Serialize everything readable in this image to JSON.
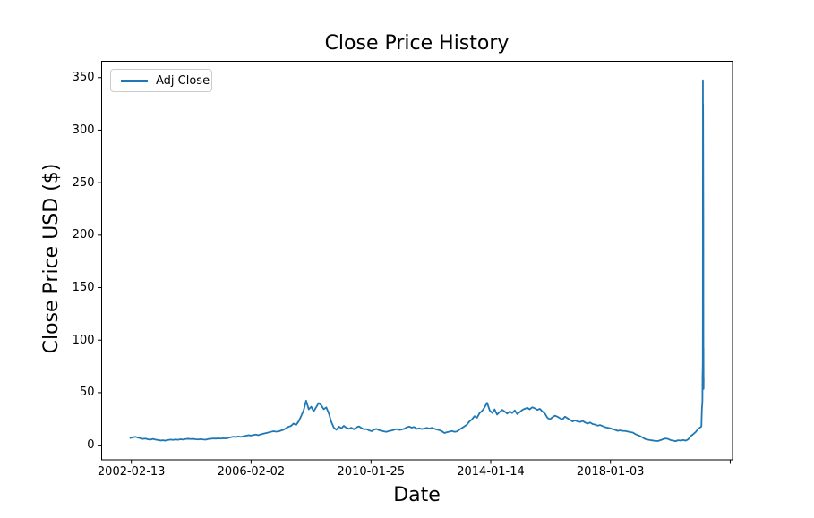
{
  "page": {
    "background": "#ffffff",
    "text_color": "#000000",
    "spine_color": "#000000"
  },
  "chart_data": {
    "type": "line",
    "title": "Close Price History",
    "xlabel": "Date",
    "ylabel": "Close Price USD ($)",
    "grid": false,
    "legend": {
      "position": "upper left",
      "entries": [
        {
          "label": "Adj Close",
          "color": "#1f77b4"
        }
      ]
    },
    "xticks": [
      "2002-02-13",
      "2006-02-02",
      "2010-01-25",
      "2014-01-14",
      "2018-01-03"
    ],
    "extra_unlabeled_xtick": true,
    "yticks": [
      0,
      50,
      100,
      150,
      200,
      250,
      300,
      350
    ],
    "ylim": [
      -14,
      365.5
    ],
    "series": [
      {
        "name": "Adj Close",
        "color": "#1f77b4",
        "points": [
          [
            "2002-02",
            6.8
          ],
          [
            "2002-03",
            7.4
          ],
          [
            "2002-04",
            8.0
          ],
          [
            "2002-05",
            7.2
          ],
          [
            "2002-06",
            6.6
          ],
          [
            "2002-07",
            5.9
          ],
          [
            "2002-08",
            6.3
          ],
          [
            "2002-09",
            5.6
          ],
          [
            "2002-10",
            5.2
          ],
          [
            "2002-11",
            5.9
          ],
          [
            "2002-12",
            5.3
          ],
          [
            "2003-01",
            4.9
          ],
          [
            "2003-02",
            4.4
          ],
          [
            "2003-03",
            4.7
          ],
          [
            "2003-04",
            4.3
          ],
          [
            "2003-05",
            4.9
          ],
          [
            "2003-06",
            5.3
          ],
          [
            "2003-07",
            5.0
          ],
          [
            "2003-08",
            5.4
          ],
          [
            "2003-09",
            5.1
          ],
          [
            "2003-10",
            5.6
          ],
          [
            "2003-11",
            5.3
          ],
          [
            "2003-12",
            5.8
          ],
          [
            "2004-01",
            6.1
          ],
          [
            "2004-02",
            5.8
          ],
          [
            "2004-03",
            6.0
          ],
          [
            "2004-04",
            5.6
          ],
          [
            "2004-05",
            5.4
          ],
          [
            "2004-06",
            5.7
          ],
          [
            "2004-07",
            5.4
          ],
          [
            "2004-08",
            5.2
          ],
          [
            "2004-09",
            5.8
          ],
          [
            "2004-10",
            6.1
          ],
          [
            "2004-11",
            6.4
          ],
          [
            "2004-12",
            6.2
          ],
          [
            "2005-01",
            6.5
          ],
          [
            "2005-02",
            6.3
          ],
          [
            "2005-03",
            6.6
          ],
          [
            "2005-04",
            6.4
          ],
          [
            "2005-05",
            6.9
          ],
          [
            "2005-06",
            7.5
          ],
          [
            "2005-07",
            8.1
          ],
          [
            "2005-08",
            7.7
          ],
          [
            "2005-09",
            8.3
          ],
          [
            "2005-10",
            7.9
          ],
          [
            "2005-11",
            8.5
          ],
          [
            "2005-12",
            8.9
          ],
          [
            "2006-01",
            9.5
          ],
          [
            "2006-02",
            9.1
          ],
          [
            "2006-03",
            9.7
          ],
          [
            "2006-04",
            10.1
          ],
          [
            "2006-05",
            9.5
          ],
          [
            "2006-06",
            10.3
          ],
          [
            "2006-07",
            10.9
          ],
          [
            "2006-08",
            11.5
          ],
          [
            "2006-09",
            12.1
          ],
          [
            "2006-10",
            12.7
          ],
          [
            "2006-11",
            13.3
          ],
          [
            "2006-12",
            12.9
          ],
          [
            "2007-01",
            13.1
          ],
          [
            "2007-02",
            13.9
          ],
          [
            "2007-03",
            14.7
          ],
          [
            "2007-04",
            16.1
          ],
          [
            "2007-05",
            17.5
          ],
          [
            "2007-06",
            18.3
          ],
          [
            "2007-07",
            20.6
          ],
          [
            "2007-08",
            19.2
          ],
          [
            "2007-09",
            22.6
          ],
          [
            "2007-10",
            27.6
          ],
          [
            "2007-11",
            33.2
          ],
          [
            "2007-12",
            42.4
          ],
          [
            "2008-01",
            34.2
          ],
          [
            "2008-02",
            36.6
          ],
          [
            "2008-03",
            32.2
          ],
          [
            "2008-04",
            36.2
          ],
          [
            "2008-05",
            40.2
          ],
          [
            "2008-06",
            38.0
          ],
          [
            "2008-07",
            34.2
          ],
          [
            "2008-08",
            36.0
          ],
          [
            "2008-09",
            30.2
          ],
          [
            "2008-10",
            22.0
          ],
          [
            "2008-11",
            16.6
          ],
          [
            "2008-12",
            14.6
          ],
          [
            "2009-01",
            17.6
          ],
          [
            "2009-02",
            16.1
          ],
          [
            "2009-03",
            18.4
          ],
          [
            "2009-04",
            16.6
          ],
          [
            "2009-05",
            15.6
          ],
          [
            "2009-06",
            16.6
          ],
          [
            "2009-07",
            15.1
          ],
          [
            "2009-08",
            16.9
          ],
          [
            "2009-09",
            17.9
          ],
          [
            "2009-10",
            16.3
          ],
          [
            "2009-11",
            15.1
          ],
          [
            "2009-12",
            15.3
          ],
          [
            "2010-01",
            14.1
          ],
          [
            "2010-02",
            13.3
          ],
          [
            "2010-03",
            14.7
          ],
          [
            "2010-04",
            15.5
          ],
          [
            "2010-05",
            14.3
          ],
          [
            "2010-06",
            13.7
          ],
          [
            "2010-07",
            13.1
          ],
          [
            "2010-08",
            12.7
          ],
          [
            "2010-09",
            13.5
          ],
          [
            "2010-10",
            13.9
          ],
          [
            "2010-11",
            14.7
          ],
          [
            "2010-12",
            15.3
          ],
          [
            "2011-01",
            14.5
          ],
          [
            "2011-02",
            14.9
          ],
          [
            "2011-03",
            15.5
          ],
          [
            "2011-04",
            16.9
          ],
          [
            "2011-05",
            17.7
          ],
          [
            "2011-06",
            16.7
          ],
          [
            "2011-07",
            17.3
          ],
          [
            "2011-08",
            15.5
          ],
          [
            "2011-09",
            16.1
          ],
          [
            "2011-10",
            15.3
          ],
          [
            "2011-11",
            15.9
          ],
          [
            "2011-12",
            16.5
          ],
          [
            "2012-01",
            15.9
          ],
          [
            "2012-02",
            16.5
          ],
          [
            "2012-03",
            15.7
          ],
          [
            "2012-04",
            14.9
          ],
          [
            "2012-05",
            14.3
          ],
          [
            "2012-06",
            13.3
          ],
          [
            "2012-07",
            11.6
          ],
          [
            "2012-08",
            12.3
          ],
          [
            "2012-09",
            12.9
          ],
          [
            "2012-10",
            13.5
          ],
          [
            "2012-11",
            12.7
          ],
          [
            "2012-12",
            13.1
          ],
          [
            "2013-01",
            14.9
          ],
          [
            "2013-02",
            16.5
          ],
          [
            "2013-03",
            17.9
          ],
          [
            "2013-04",
            19.6
          ],
          [
            "2013-05",
            22.6
          ],
          [
            "2013-06",
            24.6
          ],
          [
            "2013-07",
            27.6
          ],
          [
            "2013-08",
            26.1
          ],
          [
            "2013-09",
            30.6
          ],
          [
            "2013-10",
            32.6
          ],
          [
            "2013-11",
            36.1
          ],
          [
            "2013-12",
            40.4
          ],
          [
            "2014-01",
            33.1
          ],
          [
            "2014-02",
            30.6
          ],
          [
            "2014-03",
            34.1
          ],
          [
            "2014-04",
            29.1
          ],
          [
            "2014-05",
            31.6
          ],
          [
            "2014-06",
            33.6
          ],
          [
            "2014-07",
            32.1
          ],
          [
            "2014-08",
            30.1
          ],
          [
            "2014-09",
            32.1
          ],
          [
            "2014-10",
            30.6
          ],
          [
            "2014-11",
            33.1
          ],
          [
            "2014-12",
            29.6
          ],
          [
            "2015-01",
            31.6
          ],
          [
            "2015-02",
            33.6
          ],
          [
            "2015-03",
            34.6
          ],
          [
            "2015-04",
            35.6
          ],
          [
            "2015-05",
            34.1
          ],
          [
            "2015-06",
            36.1
          ],
          [
            "2015-07",
            35.1
          ],
          [
            "2015-08",
            33.6
          ],
          [
            "2015-09",
            34.6
          ],
          [
            "2015-10",
            32.1
          ],
          [
            "2015-11",
            30.1
          ],
          [
            "2015-12",
            26.1
          ],
          [
            "2016-01",
            24.6
          ],
          [
            "2016-02",
            26.6
          ],
          [
            "2016-03",
            28.1
          ],
          [
            "2016-04",
            27.1
          ],
          [
            "2016-05",
            25.6
          ],
          [
            "2016-06",
            24.6
          ],
          [
            "2016-07",
            27.1
          ],
          [
            "2016-08",
            25.6
          ],
          [
            "2016-09",
            24.1
          ],
          [
            "2016-10",
            22.6
          ],
          [
            "2016-11",
            23.6
          ],
          [
            "2016-12",
            22.6
          ],
          [
            "2017-01",
            22.1
          ],
          [
            "2017-02",
            23.1
          ],
          [
            "2017-03",
            21.6
          ],
          [
            "2017-04",
            20.6
          ],
          [
            "2017-05",
            21.6
          ],
          [
            "2017-06",
            20.1
          ],
          [
            "2017-07",
            19.6
          ],
          [
            "2017-08",
            18.6
          ],
          [
            "2017-09",
            19.1
          ],
          [
            "2017-10",
            18.1
          ],
          [
            "2017-11",
            17.1
          ],
          [
            "2017-12",
            16.6
          ],
          [
            "2018-01",
            16.1
          ],
          [
            "2018-02",
            15.1
          ],
          [
            "2018-03",
            14.6
          ],
          [
            "2018-04",
            13.6
          ],
          [
            "2018-05",
            14.1
          ],
          [
            "2018-06",
            13.6
          ],
          [
            "2018-07",
            13.5
          ],
          [
            "2018-08",
            13.0
          ],
          [
            "2018-09",
            12.4
          ],
          [
            "2018-10",
            12.0
          ],
          [
            "2018-11",
            10.5
          ],
          [
            "2018-12",
            9.5
          ],
          [
            "2019-01",
            8.5
          ],
          [
            "2019-02",
            7.0
          ],
          [
            "2019-03",
            5.8
          ],
          [
            "2019-04",
            5.2
          ],
          [
            "2019-05",
            4.8
          ],
          [
            "2019-06",
            4.4
          ],
          [
            "2019-07",
            4.1
          ],
          [
            "2019-08",
            3.9
          ],
          [
            "2019-09",
            4.8
          ],
          [
            "2019-10",
            5.6
          ],
          [
            "2019-11",
            6.4
          ],
          [
            "2019-12",
            5.9
          ],
          [
            "2020-01",
            4.8
          ],
          [
            "2020-02",
            4.3
          ],
          [
            "2020-03",
            3.7
          ],
          [
            "2020-04",
            4.7
          ],
          [
            "2020-05",
            4.3
          ],
          [
            "2020-06",
            4.9
          ],
          [
            "2020-07",
            4.3
          ],
          [
            "2020-08",
            5.5
          ],
          [
            "2020-09",
            8.6
          ],
          [
            "2020-10",
            10.4
          ],
          [
            "2020-11",
            12.6
          ],
          [
            "2020-12",
            15.6
          ],
          [
            "2021-01-08",
            17.7
          ],
          [
            "2021-01-13",
            31.4
          ],
          [
            "2021-01-15",
            35.5
          ],
          [
            "2021-01-19",
            39.1
          ],
          [
            "2021-01-21",
            43.0
          ],
          [
            "2021-01-22",
            65.0
          ],
          [
            "2021-01-25",
            76.8
          ],
          [
            "2021-01-26",
            148.0
          ],
          [
            "2021-01-27",
            347.5
          ],
          [
            "2021-01-28",
            193.6
          ],
          [
            "2021-01-29",
            325.0
          ],
          [
            "2021-02-01",
            225.0
          ],
          [
            "2021-02-02",
            90.0
          ],
          [
            "2021-02-03",
            92.4
          ],
          [
            "2021-02-04",
            53.5
          ],
          [
            "2021-02-05",
            63.8
          ]
        ]
      }
    ]
  }
}
